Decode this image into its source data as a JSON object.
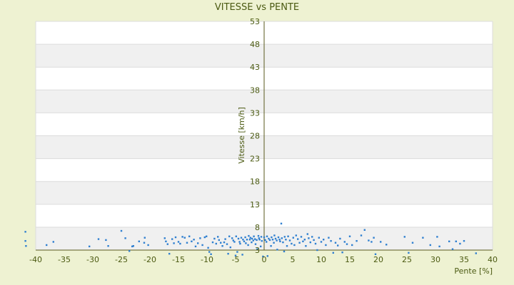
{
  "chart_data": {
    "type": "scatter",
    "title": "VITESSE vs PENTE",
    "xlabel": "Pente [%]",
    "ylabel": "Vitesse [km/h]",
    "xlim": [
      -40,
      40
    ],
    "ylim": [
      3,
      53
    ],
    "x_ticks": [
      "-40",
      "-35",
      "-30",
      "-25",
      "-20",
      "-15",
      "-10",
      "-5",
      "0",
      "5",
      "10",
      "15",
      "20",
      "25",
      "30",
      "35",
      "40"
    ],
    "y_ticks": [
      "3",
      "8",
      "13",
      "18",
      "23",
      "28",
      "33",
      "38",
      "43",
      "48",
      "53"
    ],
    "grid": true,
    "legend": "none",
    "colors": {
      "background": "#eef2d2",
      "plot_band_light": "#ffffff",
      "plot_band_dark": "#f0f0f0",
      "grid": "#dcdcdc",
      "axis": "#5a5a1e",
      "marker": "#2f7fd0",
      "text": "#4b5a12"
    },
    "series": [
      {
        "points": [
          [
            -41.8,
            7.0
          ],
          [
            -41.8,
            5.0
          ],
          [
            -41.7,
            3.9
          ],
          [
            -38.1,
            4.1
          ],
          [
            -36.9,
            4.8
          ],
          [
            -30.6,
            3.8
          ],
          [
            -29.0,
            5.4
          ],
          [
            -27.7,
            5.2
          ],
          [
            -27.3,
            3.9
          ],
          [
            -25.0,
            7.2
          ],
          [
            -24.3,
            5.6
          ],
          [
            -23.6,
            2.8
          ],
          [
            -23.1,
            3.8
          ],
          [
            -22.9,
            3.9
          ],
          [
            -21.9,
            4.9
          ],
          [
            -21.0,
            4.6
          ],
          [
            -20.9,
            5.7
          ],
          [
            -20.3,
            4.1
          ],
          [
            -17.4,
            5.6
          ],
          [
            -17.2,
            4.9
          ],
          [
            -16.9,
            4.3
          ],
          [
            -16.6,
            2.2
          ],
          [
            -16.1,
            5.4
          ],
          [
            -15.8,
            4.5
          ],
          [
            -15.5,
            5.8
          ],
          [
            -15.0,
            4.8
          ],
          [
            -14.7,
            4.4
          ],
          [
            -14.3,
            5.9
          ],
          [
            -13.9,
            5.7
          ],
          [
            -13.5,
            4.6
          ],
          [
            -13.1,
            6.0
          ],
          [
            -12.7,
            4.9
          ],
          [
            -12.3,
            5.3
          ],
          [
            -12.0,
            3.8
          ],
          [
            -11.6,
            4.5
          ],
          [
            -11.2,
            5.6
          ],
          [
            -10.8,
            4.1
          ],
          [
            -10.4,
            5.8
          ],
          [
            -10.1,
            6.0
          ],
          [
            -9.8,
            3.5
          ],
          [
            -9.6,
            2.6
          ],
          [
            -9.3,
            2.1
          ],
          [
            -9.0,
            4.7
          ],
          [
            -8.7,
            5.5
          ],
          [
            -8.4,
            4.4
          ],
          [
            -8.1,
            5.9
          ],
          [
            -7.9,
            5.2
          ],
          [
            -7.6,
            4.6
          ],
          [
            -7.3,
            3.9
          ],
          [
            -7.0,
            4.7
          ],
          [
            -6.8,
            5.4
          ],
          [
            -6.5,
            4.3
          ],
          [
            -6.3,
            2.2
          ],
          [
            -6.1,
            6.0
          ],
          [
            -5.9,
            3.6
          ],
          [
            -5.6,
            5.6
          ],
          [
            -5.4,
            5.1
          ],
          [
            -5.2,
            4.8
          ],
          [
            -5.0,
            1.8
          ],
          [
            -4.9,
            6.0
          ],
          [
            -4.7,
            2.6
          ],
          [
            -4.5,
            5.5
          ],
          [
            -4.3,
            4.8
          ],
          [
            -4.2,
            4.4
          ],
          [
            -4.0,
            5.7
          ],
          [
            -3.8,
            2.0
          ],
          [
            -3.7,
            5.3
          ],
          [
            -3.5,
            4.9
          ],
          [
            -3.3,
            5.8
          ],
          [
            -3.2,
            4.5
          ],
          [
            -3.0,
            5.3
          ],
          [
            -2.8,
            4.1
          ],
          [
            -2.7,
            6.1
          ],
          [
            -2.5,
            5.3
          ],
          [
            -2.4,
            5.7
          ],
          [
            -2.2,
            4.7
          ],
          [
            -2.1,
            5.5
          ],
          [
            -1.9,
            5.1
          ],
          [
            -1.8,
            6.0
          ],
          [
            -1.6,
            5.4
          ],
          [
            -1.5,
            4.3
          ],
          [
            -1.3,
            5.2
          ],
          [
            -1.2,
            3.2
          ],
          [
            -1.0,
            6.1
          ],
          [
            -0.9,
            5.6
          ],
          [
            -0.8,
            5.3
          ],
          [
            -0.6,
            3.8
          ],
          [
            -0.5,
            5.9
          ],
          [
            -0.4,
            5.0
          ],
          [
            -0.2,
            1.6
          ],
          [
            0.0,
            5.8
          ],
          [
            0.2,
            5.2
          ],
          [
            0.4,
            4.8
          ],
          [
            0.5,
            6.0
          ],
          [
            0.6,
            1.7
          ],
          [
            0.8,
            5.5
          ],
          [
            1.0,
            5.2
          ],
          [
            1.2,
            3.9
          ],
          [
            1.3,
            5.8
          ],
          [
            1.5,
            5.3
          ],
          [
            1.7,
            4.6
          ],
          [
            1.8,
            6.2
          ],
          [
            2.0,
            5.5
          ],
          [
            2.2,
            5.1
          ],
          [
            2.3,
            3.1
          ],
          [
            2.5,
            5.8
          ],
          [
            2.7,
            5.3
          ],
          [
            2.8,
            4.9
          ],
          [
            3.0,
            8.8
          ],
          [
            3.1,
            5.6
          ],
          [
            3.3,
            4.7
          ],
          [
            3.5,
            2.7
          ],
          [
            3.6,
            5.9
          ],
          [
            3.8,
            5.3
          ],
          [
            4.0,
            3.9
          ],
          [
            4.2,
            6.0
          ],
          [
            4.5,
            5.1
          ],
          [
            4.8,
            4.4
          ],
          [
            5.1,
            5.7
          ],
          [
            5.3,
            4.1
          ],
          [
            5.6,
            6.2
          ],
          [
            5.9,
            5.4
          ],
          [
            6.2,
            4.6
          ],
          [
            6.5,
            5.9
          ],
          [
            6.8,
            4.9
          ],
          [
            7.1,
            5.3
          ],
          [
            7.3,
            3.9
          ],
          [
            7.6,
            6.5
          ],
          [
            7.8,
            5.6
          ],
          [
            8.1,
            4.7
          ],
          [
            8.4,
            5.9
          ],
          [
            8.7,
            5.2
          ],
          [
            9.0,
            4.4
          ],
          [
            9.3,
            3.0
          ],
          [
            9.6,
            5.7
          ],
          [
            10.0,
            4.8
          ],
          [
            10.4,
            5.3
          ],
          [
            10.8,
            4.1
          ],
          [
            11.3,
            5.7
          ],
          [
            11.7,
            5.0
          ],
          [
            12.1,
            2.4
          ],
          [
            12.5,
            4.6
          ],
          [
            12.9,
            4.0
          ],
          [
            13.3,
            5.5
          ],
          [
            13.7,
            2.5
          ],
          [
            14.1,
            4.8
          ],
          [
            14.5,
            4.3
          ],
          [
            15.0,
            6.0
          ],
          [
            15.4,
            4.1
          ],
          [
            16.2,
            5.0
          ],
          [
            17.0,
            6.2
          ],
          [
            17.6,
            7.4
          ],
          [
            18.3,
            5.1
          ],
          [
            18.8,
            4.8
          ],
          [
            19.2,
            5.7
          ],
          [
            19.5,
            2.1
          ],
          [
            20.4,
            4.8
          ],
          [
            21.4,
            4.2
          ],
          [
            24.6,
            5.9
          ],
          [
            25.3,
            2.4
          ],
          [
            26.0,
            4.6
          ],
          [
            27.8,
            5.7
          ],
          [
            29.1,
            4.1
          ],
          [
            30.3,
            5.9
          ],
          [
            30.7,
            3.8
          ],
          [
            32.4,
            4.9
          ],
          [
            33.0,
            3.2
          ],
          [
            33.6,
            4.9
          ],
          [
            34.3,
            4.4
          ],
          [
            35.0,
            5.0
          ],
          [
            37.1,
            2.3
          ]
        ]
      }
    ]
  }
}
